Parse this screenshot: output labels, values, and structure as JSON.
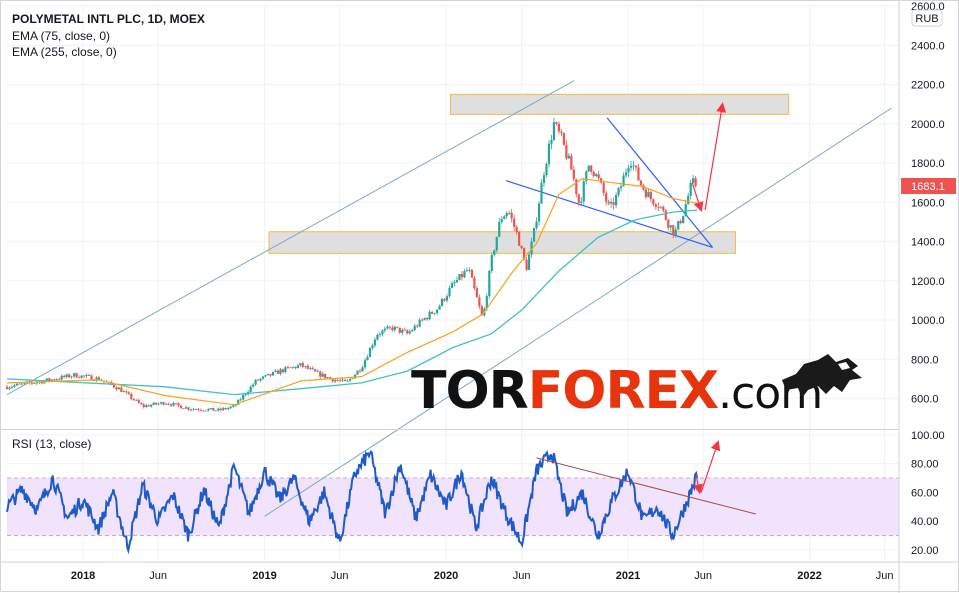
{
  "header": {
    "symbol_line": "POLYMETAL INTL PLC, 1D, MOEX",
    "ema_fast_label": "EMA (75, close, 0)",
    "ema_slow_label": "EMA (255, close, 0)",
    "currency_badge": "RUB",
    "last_price_badge": "1683.1"
  },
  "rsi_panel": {
    "label": "RSI (13, close)"
  },
  "watermark": {
    "part1": "TOR",
    "part2": "FOREX",
    "part3": ".com"
  },
  "colors": {
    "candle_up": "#26a69a",
    "candle_down": "#ef5350",
    "ema_fast": "#f7a21b",
    "ema_slow": "#3fc1c9",
    "channel": "#7fa7c9",
    "wedge": "#2962ff",
    "zone_fill": "#d9d9d9",
    "zone_border": "#f2b84b",
    "arrow": "#f23645",
    "rsi_line": "#1e5bc6",
    "rsi_band": "#f1e3fb",
    "rsi_trend": "#a0504b",
    "price_badge": "#ef5350"
  },
  "chart_data": [
    {
      "type": "candlestick",
      "title": "POLYMETAL INTL PLC, 1D, MOEX",
      "ylim": [
        450,
        2600
      ],
      "y_ticks": [
        "600.0",
        "800.0",
        "1000.0",
        "1200.0",
        "1400.0",
        "1600.0",
        "1800.0",
        "2000.0",
        "2200.0",
        "2400.0",
        "2600.0"
      ],
      "x_ticks": [
        "2018",
        "Jun",
        "2019",
        "Jun",
        "2020",
        "Jun",
        "2021",
        "Jun",
        "2022",
        "Jun"
      ],
      "x_range": [
        "2017-08-01",
        "2022-06-30"
      ],
      "close_series": [
        [
          "2017-08-01",
          660
        ],
        [
          "2017-10-15",
          690
        ],
        [
          "2017-12-15",
          720
        ],
        [
          "2018-02-01",
          700
        ],
        [
          "2018-03-15",
          650
        ],
        [
          "2018-05-01",
          560
        ],
        [
          "2018-06-15",
          580
        ],
        [
          "2018-08-01",
          550
        ],
        [
          "2018-10-01",
          540
        ],
        [
          "2018-11-01",
          560
        ],
        [
          "2018-12-15",
          690
        ],
        [
          "2019-02-01",
          740
        ],
        [
          "2019-03-15",
          770
        ],
        [
          "2019-04-15",
          730
        ],
        [
          "2019-05-15",
          700
        ],
        [
          "2019-06-15",
          680
        ],
        [
          "2019-07-15",
          760
        ],
        [
          "2019-08-15",
          930
        ],
        [
          "2019-09-15",
          960
        ],
        [
          "2019-10-15",
          930
        ],
        [
          "2019-11-15",
          1000
        ],
        [
          "2019-12-15",
          1060
        ],
        [
          "2020-01-15",
          1180
        ],
        [
          "2020-02-15",
          1260
        ],
        [
          "2020-03-15",
          1000
        ],
        [
          "2020-04-01",
          1300
        ],
        [
          "2020-04-20",
          1520
        ],
        [
          "2020-05-05",
          1560
        ],
        [
          "2020-05-25",
          1420
        ],
        [
          "2020-06-10",
          1260
        ],
        [
          "2020-06-25",
          1430
        ],
        [
          "2020-07-15",
          1750
        ],
        [
          "2020-08-05",
          2000
        ],
        [
          "2020-08-20",
          1920
        ],
        [
          "2020-09-10",
          1760
        ],
        [
          "2020-09-25",
          1590
        ],
        [
          "2020-10-15",
          1800
        ],
        [
          "2020-11-05",
          1700
        ],
        [
          "2020-11-25",
          1560
        ],
        [
          "2020-12-15",
          1660
        ],
        [
          "2021-01-05",
          1830
        ],
        [
          "2021-01-25",
          1700
        ],
        [
          "2021-02-15",
          1620
        ],
        [
          "2021-03-05",
          1590
        ],
        [
          "2021-03-20",
          1510
        ],
        [
          "2021-04-05",
          1440
        ],
        [
          "2021-04-20",
          1530
        ],
        [
          "2021-05-10",
          1700
        ],
        [
          "2021-05-20",
          1683
        ]
      ],
      "ema_fast": [
        [
          "2017-08-01",
          680
        ],
        [
          "2018-02-01",
          695
        ],
        [
          "2018-06-15",
          615
        ],
        [
          "2018-11-01",
          568
        ],
        [
          "2019-03-15",
          690
        ],
        [
          "2019-07-15",
          712
        ],
        [
          "2019-10-15",
          835
        ],
        [
          "2020-01-15",
          940
        ],
        [
          "2020-03-15",
          1030
        ],
        [
          "2020-05-15",
          1250
        ],
        [
          "2020-07-01",
          1390
        ],
        [
          "2020-08-15",
          1640
        ],
        [
          "2020-10-01",
          1720
        ],
        [
          "2020-12-01",
          1700
        ],
        [
          "2021-02-01",
          1680
        ],
        [
          "2021-04-01",
          1620
        ],
        [
          "2021-05-20",
          1595
        ]
      ],
      "ema_slow": [
        [
          "2017-08-01",
          700
        ],
        [
          "2018-06-15",
          660
        ],
        [
          "2018-11-01",
          620
        ],
        [
          "2019-03-15",
          650
        ],
        [
          "2019-07-15",
          680
        ],
        [
          "2019-10-15",
          740
        ],
        [
          "2020-01-15",
          860
        ],
        [
          "2020-04-01",
          930
        ],
        [
          "2020-06-01",
          1050
        ],
        [
          "2020-08-15",
          1250
        ],
        [
          "2020-11-01",
          1420
        ],
        [
          "2021-01-15",
          1510
        ],
        [
          "2021-04-01",
          1550
        ],
        [
          "2021-05-20",
          1560
        ]
      ],
      "zones": [
        {
          "from": "2020-01-10",
          "to": "2021-11-20",
          "y_low": 2048,
          "y_high": 2150
        },
        {
          "from": "2019-01-10",
          "to": "2021-08-05",
          "y_low": 1340,
          "y_high": 1450
        }
      ],
      "channel_lines": [
        {
          "from": [
            "2017-08-01",
            620
          ],
          "to": [
            "2020-09-15",
            2220
          ]
        },
        {
          "from": [
            "2019-01-01",
            0
          ],
          "to": [
            "2022-06-15",
            2080
          ]
        }
      ],
      "wedge_lines": [
        {
          "from": [
            "2020-05-01",
            1710
          ],
          "to": [
            "2021-06-20",
            1370
          ]
        },
        {
          "from": [
            "2020-11-20",
            2030
          ],
          "to": [
            "2021-06-20",
            1370
          ]
        }
      ],
      "arrows": [
        {
          "from": [
            "2021-05-10",
            1700
          ],
          "to": [
            "2021-05-28",
            1560
          ]
        },
        {
          "from": [
            "2021-06-05",
            1560
          ],
          "to": [
            "2021-07-10",
            2100
          ]
        }
      ],
      "last_price": 1683.1
    },
    {
      "type": "line",
      "title": "RSI (13, close)",
      "ylim": [
        13,
        102
      ],
      "y_ticks": [
        "20.00",
        "40.00",
        "60.00",
        "80.00",
        "100.00"
      ],
      "band": [
        30,
        70
      ],
      "series": [
        {
          "values": [
            [
              "2017-08-01",
              50
            ],
            [
              "2017-09-01",
              62
            ],
            [
              "2017-10-01",
              48
            ],
            [
              "2017-11-01",
              70
            ],
            [
              "2017-12-01",
              42
            ],
            [
              "2018-01-01",
              55
            ],
            [
              "2018-02-01",
              35
            ],
            [
              "2018-03-01",
              60
            ],
            [
              "2018-04-01",
              22
            ],
            [
              "2018-05-01",
              65
            ],
            [
              "2018-06-01",
              40
            ],
            [
              "2018-07-01",
              58
            ],
            [
              "2018-08-01",
              30
            ],
            [
              "2018-09-01",
              62
            ],
            [
              "2018-10-01",
              35
            ],
            [
              "2018-11-01",
              78
            ],
            [
              "2018-12-01",
              45
            ],
            [
              "2019-01-01",
              75
            ],
            [
              "2019-02-01",
              55
            ],
            [
              "2019-03-01",
              70
            ],
            [
              "2019-04-01",
              40
            ],
            [
              "2019-05-01",
              60
            ],
            [
              "2019-06-01",
              25
            ],
            [
              "2019-07-01",
              72
            ],
            [
              "2019-08-01",
              88
            ],
            [
              "2019-09-01",
              45
            ],
            [
              "2019-10-01",
              80
            ],
            [
              "2019-11-01",
              42
            ],
            [
              "2019-12-01",
              72
            ],
            [
              "2020-01-01",
              50
            ],
            [
              "2020-02-01",
              75
            ],
            [
              "2020-03-01",
              35
            ],
            [
              "2020-04-01",
              70
            ],
            [
              "2020-05-01",
              45
            ],
            [
              "2020-06-01",
              25
            ],
            [
              "2020-07-01",
              75
            ],
            [
              "2020-08-01",
              88
            ],
            [
              "2020-09-01",
              45
            ],
            [
              "2020-10-01",
              60
            ],
            [
              "2020-11-01",
              30
            ],
            [
              "2020-12-01",
              55
            ],
            [
              "2021-01-01",
              75
            ],
            [
              "2021-02-01",
              40
            ],
            [
              "2021-03-01",
              50
            ],
            [
              "2021-04-01",
              30
            ],
            [
              "2021-05-01",
              55
            ],
            [
              "2021-05-20",
              72
            ]
          ]
        }
      ],
      "trend_line": {
        "from": [
          "2020-07-01",
          84
        ],
        "to": [
          "2021-09-15",
          45
        ]
      },
      "arrows": [
        {
          "from": [
            "2021-05-18",
            72
          ],
          "to": [
            "2021-05-25",
            60
          ]
        },
        {
          "from": [
            "2021-05-28",
            60
          ],
          "to": [
            "2021-07-01",
            95
          ]
        }
      ]
    }
  ]
}
